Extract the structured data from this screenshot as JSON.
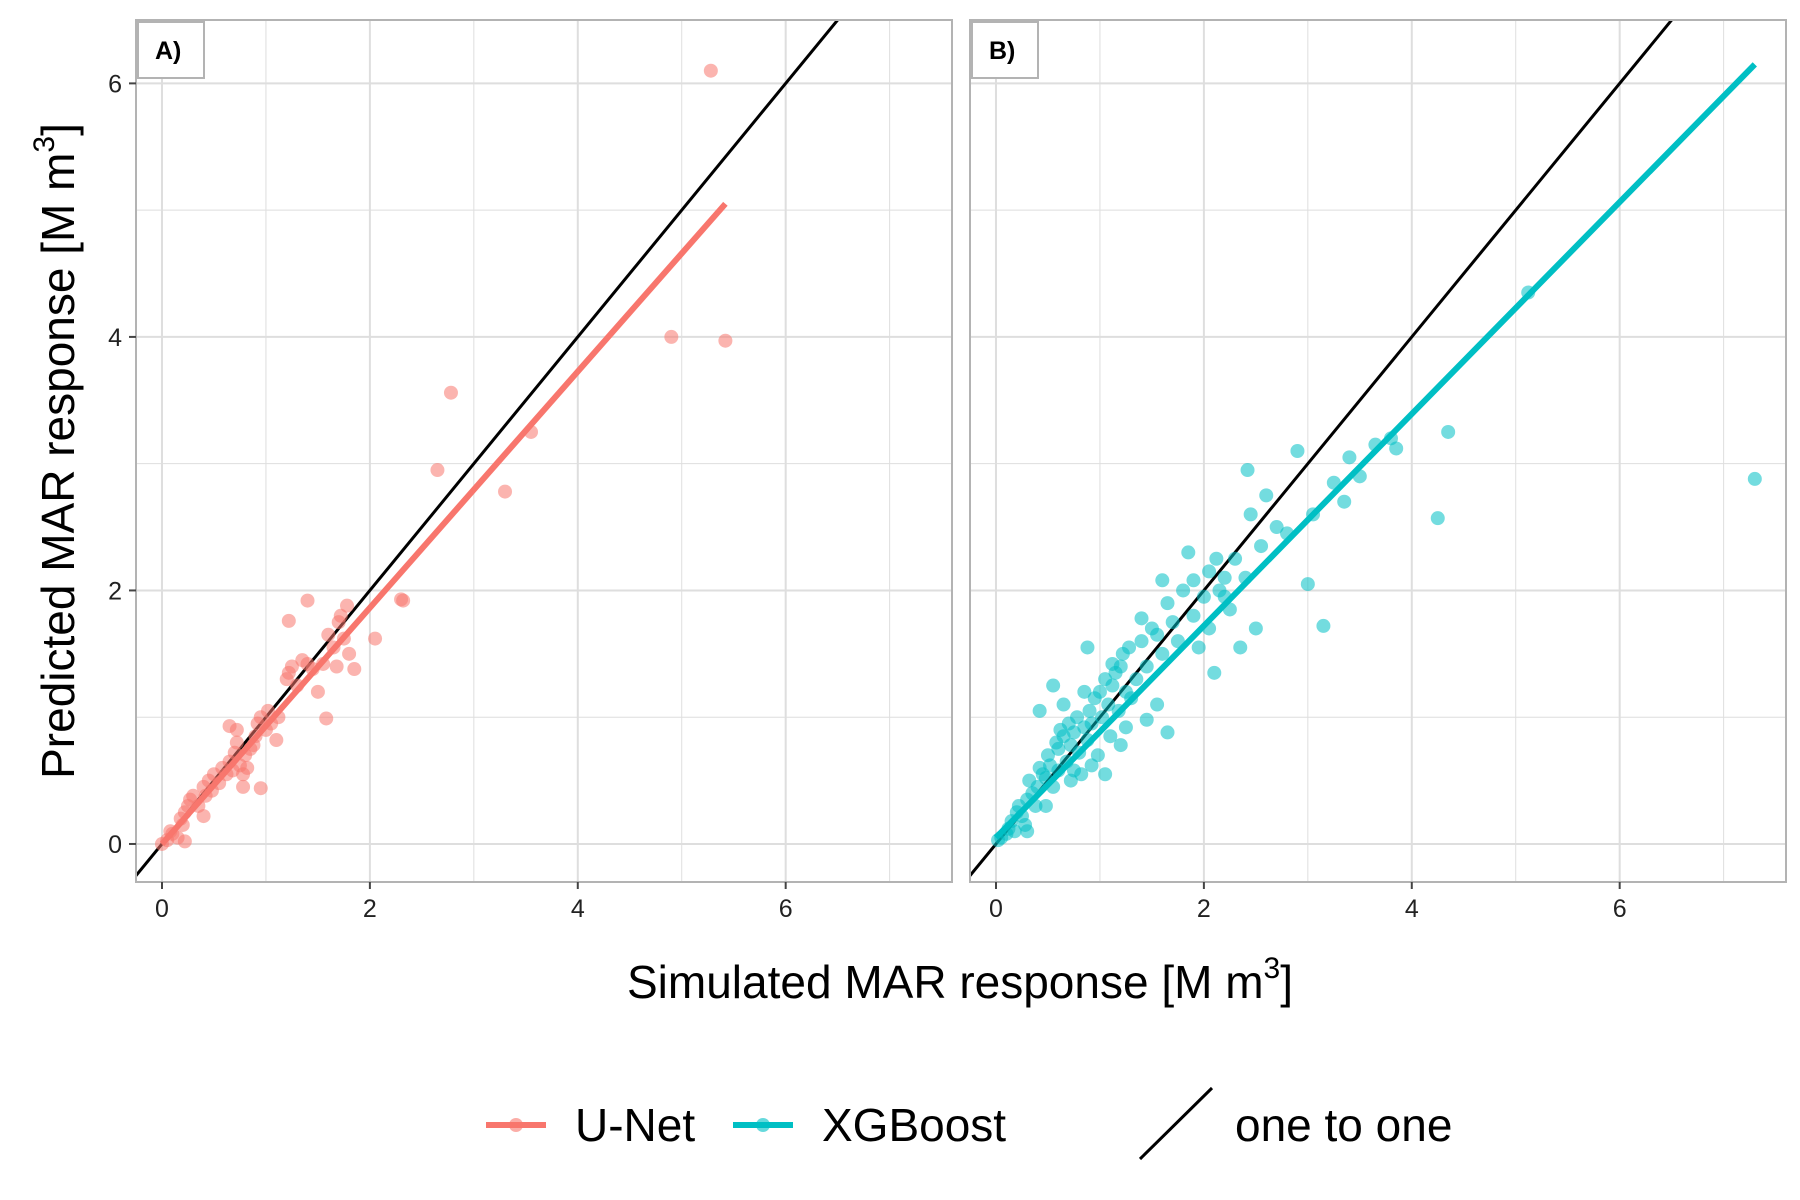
{
  "chart_data": {
    "type": "scatter",
    "xlabel": "Simulated MAR response [M m",
    "xlabel_sup": "3",
    "xlabel_end": "]",
    "ylabel": "Predicted MAR response [M m",
    "ylabel_sup": "3",
    "ylabel_end": "]",
    "xlim": [
      -0.25,
      7.6
    ],
    "ylim": [
      -0.3,
      6.5
    ],
    "xticks": [
      0,
      2,
      4,
      6
    ],
    "yticks": [
      0,
      2,
      4,
      6
    ],
    "grid": true,
    "legend_position": "bottom",
    "colors": {
      "unet": "#F8766D",
      "xgboost": "#00BFC4",
      "one_to_one": "#000000",
      "grid": "#dedede",
      "panel_border": "#b3b3b3"
    },
    "legend": [
      {
        "label": "U-Net",
        "color": "#F8766D",
        "kind": "point-line"
      },
      {
        "label": "XGBoost",
        "color": "#00BFC4",
        "kind": "point-line"
      },
      {
        "label": "one to one",
        "color": "#000000",
        "kind": "diagonal"
      }
    ],
    "panels": [
      {
        "tag": "A)",
        "series": "U-Net",
        "color": "#F8766D",
        "fit": {
          "x": [
            0,
            5.42
          ],
          "y": [
            0,
            5.05
          ]
        },
        "points": [
          [
            0,
            0
          ],
          [
            0.05,
            0.03
          ],
          [
            0.08,
            0.1
          ],
          [
            0.1,
            0.08
          ],
          [
            0.15,
            0.05
          ],
          [
            0.18,
            0.2
          ],
          [
            0.2,
            0.15
          ],
          [
            0.22,
            0.25
          ],
          [
            0.25,
            0.3
          ],
          [
            0.27,
            0.35
          ],
          [
            0.3,
            0.38
          ],
          [
            0.22,
            0.02
          ],
          [
            0.35,
            0.3
          ],
          [
            0.4,
            0.45
          ],
          [
            0.42,
            0.38
          ],
          [
            0.45,
            0.5
          ],
          [
            0.48,
            0.42
          ],
          [
            0.4,
            0.22
          ],
          [
            0.5,
            0.55
          ],
          [
            0.55,
            0.48
          ],
          [
            0.58,
            0.6
          ],
          [
            0.62,
            0.55
          ],
          [
            0.65,
            0.65
          ],
          [
            0.68,
            0.58
          ],
          [
            0.7,
            0.72
          ],
          [
            0.72,
            0.8
          ],
          [
            0.75,
            0.62
          ],
          [
            0.78,
            0.55
          ],
          [
            0.8,
            0.7
          ],
          [
            0.82,
            0.6
          ],
          [
            0.85,
            0.75
          ],
          [
            0.88,
            0.78
          ],
          [
            0.9,
            0.85
          ],
          [
            0.65,
            0.93
          ],
          [
            0.72,
            0.9
          ],
          [
            0.78,
            0.45
          ],
          [
            0.92,
            0.95
          ],
          [
            0.95,
            1.0
          ],
          [
            1.0,
            0.9
          ],
          [
            1.02,
            1.05
          ],
          [
            1.05,
            0.95
          ],
          [
            0.95,
            0.44
          ],
          [
            1.1,
            0.82
          ],
          [
            1.12,
            1.0
          ],
          [
            1.2,
            1.3
          ],
          [
            1.22,
            1.35
          ],
          [
            1.25,
            1.4
          ],
          [
            1.3,
            1.25
          ],
          [
            1.35,
            1.45
          ],
          [
            1.4,
            1.42
          ],
          [
            1.45,
            1.38
          ],
          [
            1.5,
            1.2
          ],
          [
            1.55,
            1.42
          ],
          [
            1.6,
            1.65
          ],
          [
            1.65,
            1.55
          ],
          [
            1.7,
            1.75
          ],
          [
            1.72,
            1.8
          ],
          [
            1.75,
            1.62
          ],
          [
            1.78,
            1.88
          ],
          [
            1.8,
            1.5
          ],
          [
            1.85,
            1.38
          ],
          [
            1.4,
            1.92
          ],
          [
            1.22,
            1.76
          ],
          [
            1.68,
            1.4
          ],
          [
            1.58,
            0.99
          ],
          [
            2.05,
            1.62
          ],
          [
            2.3,
            1.93
          ],
          [
            2.32,
            1.92
          ],
          [
            2.65,
            2.95
          ],
          [
            2.78,
            3.56
          ],
          [
            3.3,
            2.78
          ],
          [
            3.55,
            3.25
          ],
          [
            4.9,
            4.0
          ],
          [
            5.28,
            6.1
          ],
          [
            5.42,
            3.97
          ]
        ]
      },
      {
        "tag": "B)",
        "series": "XGBoost",
        "color": "#00BFC4",
        "fit": {
          "x": [
            0,
            7.3
          ],
          "y": [
            0.05,
            6.15
          ]
        },
        "points": [
          [
            0.02,
            0.03
          ],
          [
            0.05,
            0.05
          ],
          [
            0.1,
            0.08
          ],
          [
            0.12,
            0.12
          ],
          [
            0.15,
            0.18
          ],
          [
            0.18,
            0.1
          ],
          [
            0.2,
            0.25
          ],
          [
            0.22,
            0.3
          ],
          [
            0.25,
            0.22
          ],
          [
            0.28,
            0.15
          ],
          [
            0.3,
            0.35
          ],
          [
            0.32,
            0.5
          ],
          [
            0.35,
            0.4
          ],
          [
            0.38,
            0.3
          ],
          [
            0.4,
            0.45
          ],
          [
            0.42,
            0.6
          ],
          [
            0.45,
            0.55
          ],
          [
            0.48,
            0.52
          ],
          [
            0.5,
            0.7
          ],
          [
            0.52,
            0.62
          ],
          [
            0.55,
            0.45
          ],
          [
            0.58,
            0.8
          ],
          [
            0.6,
            0.75
          ],
          [
            0.62,
            0.9
          ],
          [
            0.65,
            0.85
          ],
          [
            0.68,
            0.65
          ],
          [
            0.7,
            0.95
          ],
          [
            0.72,
            0.78
          ],
          [
            0.75,
            0.88
          ],
          [
            0.78,
            1.0
          ],
          [
            0.8,
            0.72
          ],
          [
            0.82,
            0.55
          ],
          [
            0.85,
            0.92
          ],
          [
            0.88,
            0.82
          ],
          [
            0.9,
            1.05
          ],
          [
            0.92,
            0.95
          ],
          [
            0.95,
            1.15
          ],
          [
            0.98,
            0.7
          ],
          [
            1.0,
            1.2
          ],
          [
            1.02,
            1.0
          ],
          [
            1.05,
            1.3
          ],
          [
            1.08,
            1.1
          ],
          [
            1.1,
            0.85
          ],
          [
            1.12,
            1.25
          ],
          [
            1.15,
            1.35
          ],
          [
            1.18,
            1.05
          ],
          [
            1.2,
            1.4
          ],
          [
            1.22,
            1.5
          ],
          [
            1.25,
            1.2
          ],
          [
            1.28,
            1.55
          ],
          [
            1.3,
            1.15
          ],
          [
            1.35,
            1.3
          ],
          [
            1.4,
            1.6
          ],
          [
            1.45,
            1.4
          ],
          [
            1.5,
            1.7
          ],
          [
            1.55,
            1.65
          ],
          [
            1.6,
            1.5
          ],
          [
            1.65,
            1.9
          ],
          [
            1.7,
            1.75
          ],
          [
            1.75,
            1.6
          ],
          [
            1.8,
            2.0
          ],
          [
            1.85,
            2.3
          ],
          [
            1.9,
            1.8
          ],
          [
            1.95,
            1.55
          ],
          [
            2.0,
            1.95
          ],
          [
            2.05,
            1.7
          ],
          [
            2.1,
            1.35
          ],
          [
            2.15,
            2.0
          ],
          [
            2.2,
            2.1
          ],
          [
            2.25,
            1.85
          ],
          [
            2.3,
            2.25
          ],
          [
            2.35,
            1.55
          ],
          [
            2.4,
            2.1
          ],
          [
            2.42,
            2.95
          ],
          [
            2.45,
            2.6
          ],
          [
            2.5,
            1.7
          ],
          [
            2.55,
            2.35
          ],
          [
            2.6,
            2.75
          ],
          [
            2.7,
            2.5
          ],
          [
            2.8,
            2.45
          ],
          [
            2.9,
            3.1
          ],
          [
            3.0,
            2.05
          ],
          [
            3.05,
            2.6
          ],
          [
            3.15,
            1.72
          ],
          [
            3.25,
            2.85
          ],
          [
            3.35,
            2.7
          ],
          [
            3.4,
            3.05
          ],
          [
            3.5,
            2.9
          ],
          [
            3.65,
            3.15
          ],
          [
            3.8,
            3.2
          ],
          [
            3.85,
            3.12
          ],
          [
            4.25,
            2.57
          ],
          [
            4.35,
            3.25
          ],
          [
            5.12,
            4.35
          ],
          [
            7.3,
            2.88
          ],
          [
            0.55,
            1.25
          ],
          [
            0.65,
            1.1
          ],
          [
            0.88,
            1.55
          ],
          [
            0.42,
            1.05
          ],
          [
            0.72,
            0.5
          ],
          [
            0.92,
            0.62
          ],
          [
            1.05,
            0.55
          ],
          [
            1.2,
            0.78
          ],
          [
            0.48,
            0.3
          ],
          [
            0.3,
            0.1
          ],
          [
            0.6,
            0.58
          ],
          [
            0.75,
            0.58
          ],
          [
            0.85,
            1.2
          ],
          [
            1.12,
            1.42
          ],
          [
            1.25,
            0.92
          ],
          [
            1.4,
            1.78
          ],
          [
            1.55,
            1.1
          ],
          [
            1.65,
            0.88
          ],
          [
            1.45,
            0.98
          ],
          [
            2.05,
            2.15
          ],
          [
            2.12,
            2.25
          ],
          [
            2.2,
            1.95
          ],
          [
            1.9,
            2.08
          ],
          [
            1.6,
            2.08
          ]
        ]
      }
    ]
  }
}
